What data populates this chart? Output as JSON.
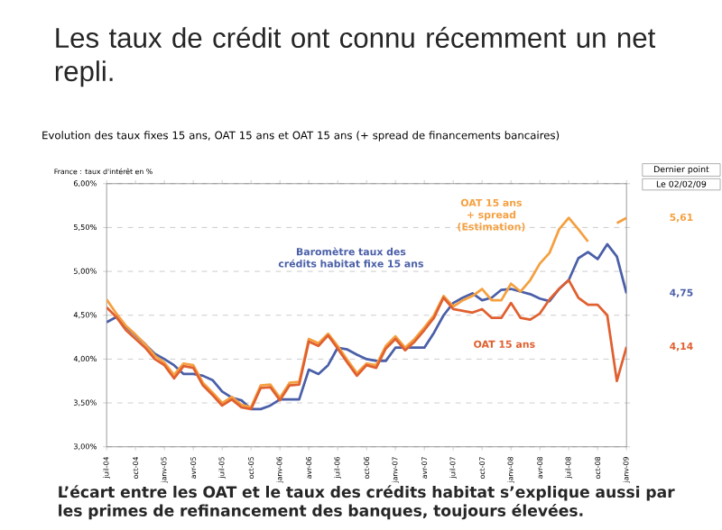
{
  "chart_data": {
    "type": "line",
    "title": "Les taux de crédit ont connu récemment un net repli.",
    "subtitle": "Evolution des taux fixes 15 ans, OAT 15 ans et OAT 15 ans (+ spread de financements bancaires)",
    "x": [
      "2004-07",
      "2004-08",
      "2004-09",
      "2004-10",
      "2004-11",
      "2004-12",
      "2005-01",
      "2005-02",
      "2005-03",
      "2005-04",
      "2005-05",
      "2005-06",
      "2005-07",
      "2005-08",
      "2005-09",
      "2005-10",
      "2005-11",
      "2005-12",
      "2006-01",
      "2006-02",
      "2006-03",
      "2006-04",
      "2006-05",
      "2006-06",
      "2006-07",
      "2006-08",
      "2006-09",
      "2006-10",
      "2006-11",
      "2006-12",
      "2007-01",
      "2007-02",
      "2007-03",
      "2007-04",
      "2007-05",
      "2007-06",
      "2007-07",
      "2007-08",
      "2007-09",
      "2007-10",
      "2007-11",
      "2007-12",
      "2008-01",
      "2008-02",
      "2008-03",
      "2008-04",
      "2008-05",
      "2008-06",
      "2008-07",
      "2008-08",
      "2008-09",
      "2008-10",
      "2008-11",
      "2008-12",
      "2009-01"
    ],
    "series": [
      {
        "name": "Baromètre taux des crédits habitat fixe 15 ans",
        "color": "#4a5fa8",
        "values": [
          4.42,
          4.48,
          4.37,
          4.27,
          4.17,
          4.06,
          4.0,
          3.93,
          3.83,
          3.83,
          3.81,
          3.76,
          3.63,
          3.56,
          3.53,
          3.43,
          3.43,
          3.47,
          3.54,
          3.54,
          3.54,
          3.88,
          3.83,
          3.93,
          4.13,
          4.11,
          4.05,
          4.0,
          3.98,
          3.98,
          4.13,
          4.13,
          4.13,
          4.13,
          4.3,
          4.5,
          4.64,
          4.7,
          4.75,
          4.67,
          4.7,
          4.79,
          4.8,
          4.77,
          4.74,
          4.69,
          4.66,
          4.8,
          4.9,
          5.15,
          5.22,
          5.14,
          5.31,
          5.17,
          4.75
        ]
      },
      {
        "name": "OAT 15 ans + spread (Estimation)",
        "color": "#f5a040",
        "values": [
          4.68,
          4.52,
          4.38,
          4.28,
          4.17,
          4.04,
          3.96,
          3.82,
          3.95,
          3.93,
          3.73,
          3.62,
          3.5,
          3.57,
          3.48,
          3.45,
          3.7,
          3.71,
          3.56,
          3.73,
          3.74,
          4.23,
          4.18,
          4.29,
          4.15,
          3.99,
          3.84,
          3.95,
          3.93,
          4.15,
          4.26,
          4.13,
          4.23,
          4.36,
          4.5,
          4.72,
          4.6,
          4.67,
          4.72,
          4.8,
          4.67,
          4.67,
          4.86,
          4.77,
          4.9,
          5.09,
          5.21,
          5.48,
          5.61,
          5.48,
          5.34,
          null,
          null,
          5.55,
          5.61
        ]
      },
      {
        "name": "OAT 15 ans",
        "color": "#e06030",
        "values": [
          4.59,
          4.48,
          4.33,
          4.23,
          4.13,
          4.0,
          3.93,
          3.78,
          3.92,
          3.9,
          3.7,
          3.59,
          3.47,
          3.54,
          3.45,
          3.43,
          3.67,
          3.68,
          3.53,
          3.7,
          3.71,
          4.2,
          4.15,
          4.27,
          4.12,
          3.96,
          3.81,
          3.93,
          3.9,
          4.12,
          4.23,
          4.1,
          4.2,
          4.33,
          4.47,
          4.7,
          4.57,
          4.55,
          4.53,
          4.57,
          4.47,
          4.47,
          4.64,
          4.47,
          4.45,
          4.52,
          4.68,
          4.8,
          4.9,
          4.7,
          4.62,
          4.62,
          4.5,
          3.75,
          4.14
        ]
      }
    ],
    "xlim": [
      "2004-07",
      "2009-01"
    ],
    "xticks": [
      {
        "value": "2004-07",
        "label": "juil-04"
      },
      {
        "value": "2004-10",
        "label": "oct-04"
      },
      {
        "value": "2005-01",
        "label": "janv-05"
      },
      {
        "value": "2005-04",
        "label": "avr-05"
      },
      {
        "value": "2005-07",
        "label": "juil-05"
      },
      {
        "value": "2005-10",
        "label": "oct-05"
      },
      {
        "value": "2006-01",
        "label": "janv-06"
      },
      {
        "value": "2006-04",
        "label": "avr-06"
      },
      {
        "value": "2006-07",
        "label": "juil-06"
      },
      {
        "value": "2006-10",
        "label": "oct-06"
      },
      {
        "value": "2007-01",
        "label": "janv-07"
      },
      {
        "value": "2007-04",
        "label": "avr-07"
      },
      {
        "value": "2007-07",
        "label": "juil-07"
      },
      {
        "value": "2007-10",
        "label": "oct-07"
      },
      {
        "value": "2008-01",
        "label": "janv-08"
      },
      {
        "value": "2008-04",
        "label": "avr-08"
      },
      {
        "value": "2008-07",
        "label": "juil-08"
      },
      {
        "value": "2008-10",
        "label": "oct-08"
      },
      {
        "value": "2009-01",
        "label": "janv-09"
      }
    ],
    "ylim": [
      3,
      6
    ],
    "yticks": [
      {
        "value": 3,
        "label": "3,00%"
      },
      {
        "value": 3.5,
        "label": "3,50%"
      },
      {
        "value": 4,
        "label": "4,00%"
      },
      {
        "value": 4.5,
        "label": "4,50%"
      },
      {
        "value": 5,
        "label": "5,00%"
      },
      {
        "value": 5.5,
        "label": "5,50%"
      },
      {
        "value": 6,
        "label": "6,00%"
      }
    ],
    "grid": "y",
    "legend": false,
    "line_style": "solid",
    "annotations": [
      "France : taux d'intérêt en %",
      "Dernier point",
      "Le 02/02/09",
      "5,61",
      "4,75",
      "4,14",
      "L’écart entre les OAT et le taux des crédits habitat s’explique aussi par les primes de refinancement des banques, toujours élevées."
    ]
  }
}
